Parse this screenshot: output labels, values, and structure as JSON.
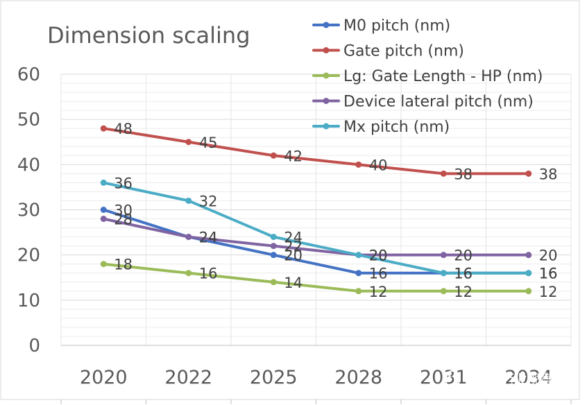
{
  "chart_data": {
    "type": "line",
    "title": "Dimension scaling",
    "xlabel": "",
    "ylabel": "",
    "categories": [
      "2020",
      "2022",
      "2025",
      "2028",
      "2031",
      "2034"
    ],
    "ylim": [
      0,
      60
    ],
    "yticks": [
      "0",
      "10",
      "20",
      "30",
      "40",
      "50",
      "60"
    ],
    "grid": true,
    "legend_position": "top-right",
    "series": [
      {
        "name": "M0 pitch (nm)",
        "color": "#4472C4",
        "values": [
          30,
          24,
          20,
          16,
          16,
          16
        ]
      },
      {
        "name": "Gate pitch (nm)",
        "color": "#C0504D",
        "values": [
          48,
          45,
          42,
          40,
          38,
          38
        ]
      },
      {
        "name": "Lg: Gate Length - HP (nm)",
        "color": "#9BBB59",
        "values": [
          18,
          16,
          14,
          12,
          12,
          12
        ]
      },
      {
        "name": "Device lateral pitch (nm)",
        "color": "#8064A2",
        "values": [
          28,
          24,
          22,
          20,
          20,
          20
        ]
      },
      {
        "name": "Mx pitch (nm)",
        "color": "#4BACC6",
        "values": [
          36,
          32,
          24,
          20,
          16,
          16
        ]
      }
    ]
  },
  "watermark": {
    "text": "半导体行业观察",
    "icon": "wechat-icon"
  }
}
